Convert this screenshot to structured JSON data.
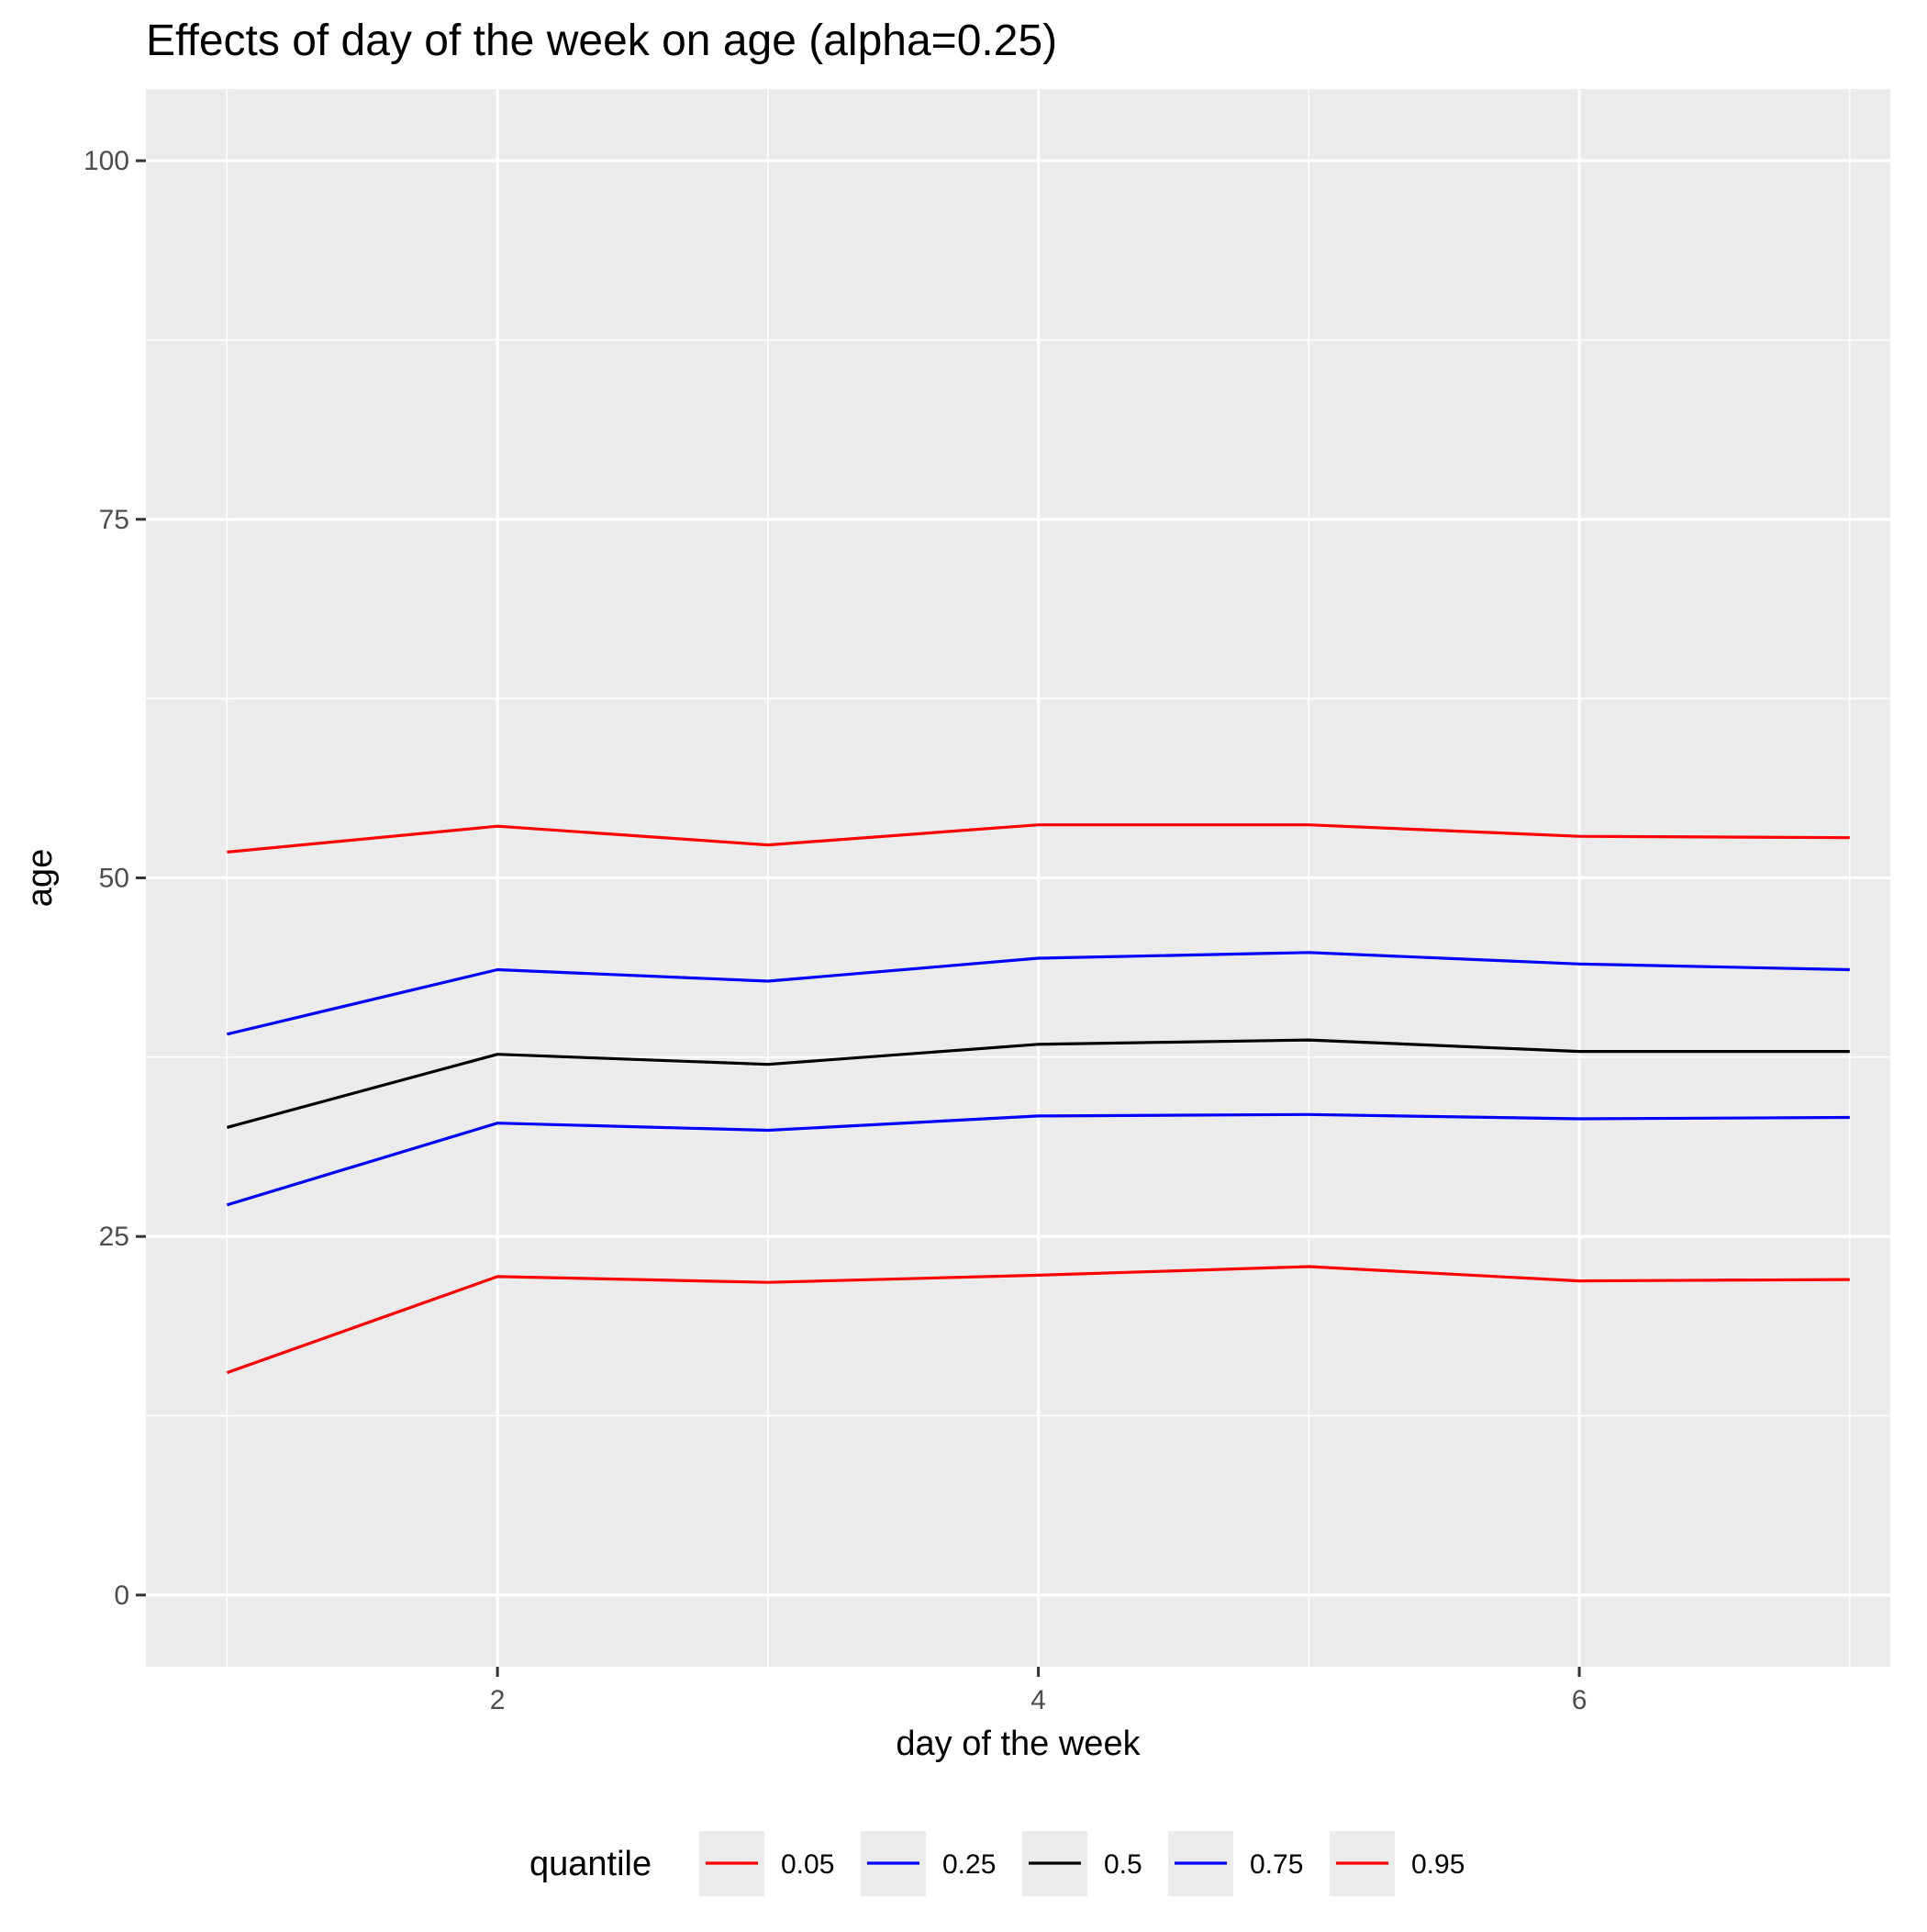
{
  "chart_data": {
    "type": "line",
    "title": "Effects of day of the week on age (alpha=0.25)",
    "xlabel": "day of the week",
    "ylabel": "age",
    "x": [
      1,
      2,
      3,
      4,
      5,
      6,
      7
    ],
    "xlim": [
      0.7,
      7.15
    ],
    "ylim": [
      -5,
      105
    ],
    "xticks": [
      2,
      4,
      6
    ],
    "yticks": [
      0,
      25,
      50,
      75,
      100
    ],
    "x_minor_gridlines": [
      1,
      3,
      5,
      7
    ],
    "y_minor_gridlines": [
      12.5,
      37.5,
      62.5,
      87.5
    ],
    "grid": true,
    "background": "#ebebeb",
    "legend": {
      "title": "quantile",
      "position": "bottom"
    },
    "series": [
      {
        "name": "0.05",
        "color": "#ff0000",
        "values": [
          15.5,
          22.2,
          21.8,
          22.3,
          22.9,
          21.9,
          22.0
        ]
      },
      {
        "name": "0.25",
        "color": "#0000ff",
        "values": [
          27.2,
          32.9,
          32.4,
          33.4,
          33.5,
          33.2,
          33.3
        ]
      },
      {
        "name": "0.5",
        "color": "#000000",
        "values": [
          32.6,
          37.7,
          37.0,
          38.4,
          38.7,
          37.9,
          37.9
        ]
      },
      {
        "name": "0.75",
        "color": "#0000ff",
        "values": [
          39.1,
          43.6,
          42.8,
          44.4,
          44.8,
          44.0,
          43.6
        ]
      },
      {
        "name": "0.95",
        "color": "#ff0000",
        "values": [
          51.8,
          53.6,
          52.3,
          53.7,
          53.7,
          52.9,
          52.8
        ]
      }
    ]
  }
}
